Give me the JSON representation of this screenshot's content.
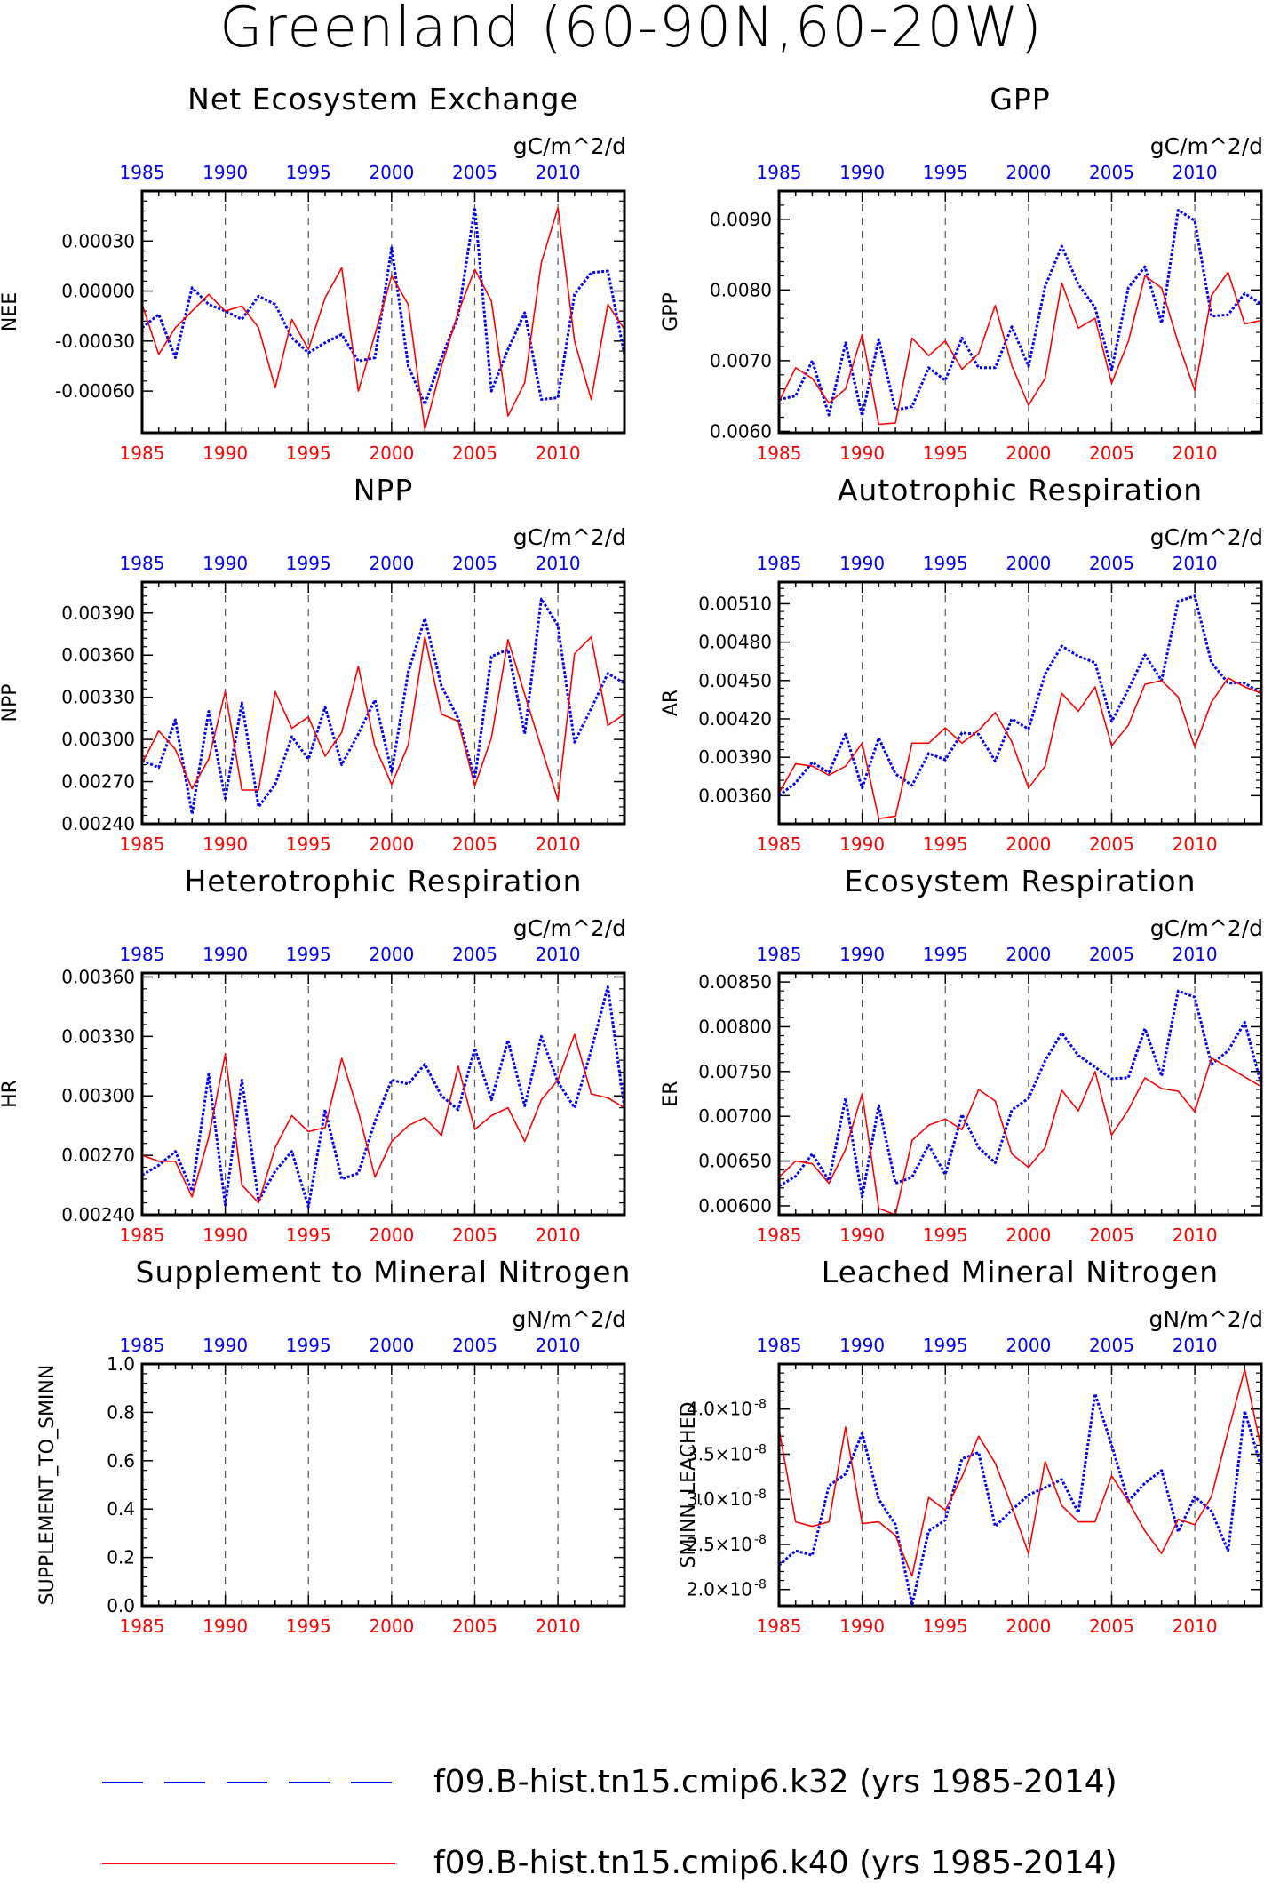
{
  "title": "Greenland (60-90N,60-20W)",
  "colors": {
    "k32": "#0000ff",
    "k40": "#ff0000",
    "grid": "#555555",
    "frame": "#000000"
  },
  "legend": [
    {
      "label": "f09.B-hist.tn15.cmip6.k32 (yrs 1985-2014)",
      "color": "#0000ff",
      "style": "dashed"
    },
    {
      "label": "f09.B-hist.tn15.cmip6.k40 (yrs 1985-2014)",
      "color": "#ff0000",
      "style": "solid"
    }
  ],
  "chart_data": [
    {
      "type": "line",
      "title": "Net Ecosystem Exchange",
      "ylabel": "NEE",
      "units": "gC/m^2/d",
      "x_range": [
        1985,
        2014
      ],
      "ylim": [
        -0.00085,
        0.0006
      ],
      "yticks": [
        -0.0006,
        -0.0003,
        0.0,
        0.0003
      ],
      "ytick_labels": [
        "-0.00060",
        "-0.00030",
        "0.00000",
        "0.00030"
      ],
      "top_ticks": [
        "1985",
        "1990",
        "1995",
        "2000",
        "2005",
        "2010"
      ],
      "bottom_ticks": [
        "1985",
        "1990",
        "1995",
        "2000",
        "2005",
        "2010"
      ],
      "series": [
        {
          "name": "f09.B-hist.tn15.cmip6.k32",
          "color": "#0000ff",
          "values": [
            -0.00022,
            -0.00014,
            -0.0004,
            2e-05,
            -8e-05,
            -0.00012,
            -0.00017,
            -3e-05,
            -8e-05,
            -0.00028,
            -0.00037,
            -0.00031,
            -0.00026,
            -0.00042,
            -0.0004,
            0.00026,
            -0.00045,
            -0.00068,
            -0.0004,
            -0.00015,
            0.0005,
            -0.0006,
            -0.00035,
            -0.00013,
            -0.00065,
            -0.00064,
            -2e-05,
            0.00011,
            0.00012,
            -0.00038
          ]
        },
        {
          "name": "f09.B-hist.tn15.cmip6.k40",
          "color": "#ff0000",
          "values": [
            -8e-05,
            -0.00038,
            -0.00022,
            -0.00012,
            -2e-05,
            -0.00012,
            -9e-05,
            -0.00022,
            -0.00058,
            -0.00017,
            -0.00035,
            -4e-05,
            0.00014,
            -0.0006,
            -0.00026,
            9e-05,
            -8e-05,
            -0.00083,
            -0.00045,
            -0.00013,
            0.00013,
            -6e-05,
            -0.00075,
            -0.00055,
            0.00017,
            0.0005,
            -0.0003,
            -0.00065,
            -8e-05,
            -0.00023
          ]
        }
      ]
    },
    {
      "type": "line",
      "title": "GPP",
      "ylabel": "GPP",
      "units": "gC/m^2/d",
      "x_range": [
        1985,
        2014
      ],
      "ylim": [
        0.00598,
        0.0094
      ],
      "yticks": [
        0.006,
        0.007,
        0.008,
        0.009
      ],
      "ytick_labels": [
        "0.0060",
        "0.0070",
        "0.0080",
        "0.0090"
      ],
      "top_ticks": [
        "1985",
        "1990",
        "1995",
        "2000",
        "2005",
        "2010"
      ],
      "bottom_ticks": [
        "1985",
        "1990",
        "1995",
        "2000",
        "2005",
        "2010"
      ],
      "series": [
        {
          "name": "f09.B-hist.tn15.cmip6.k32",
          "color": "#0000ff",
          "values": [
            0.00645,
            0.0065,
            0.007,
            0.00623,
            0.00725,
            0.00622,
            0.0073,
            0.0063,
            0.00635,
            0.0069,
            0.00672,
            0.00732,
            0.0069,
            0.0069,
            0.00748,
            0.00692,
            0.00805,
            0.00862,
            0.00808,
            0.00775,
            0.00687,
            0.00803,
            0.00833,
            0.00753,
            0.00913,
            0.00898,
            0.00763,
            0.00765,
            0.00795,
            0.0078
          ]
        },
        {
          "name": "f09.B-hist.tn15.cmip6.k40",
          "color": "#ff0000",
          "values": [
            0.00642,
            0.0069,
            0.00675,
            0.0064,
            0.0066,
            0.00737,
            0.0061,
            0.00612,
            0.00732,
            0.00707,
            0.00728,
            0.00688,
            0.0071,
            0.00778,
            0.00693,
            0.00637,
            0.00675,
            0.0081,
            0.00746,
            0.0076,
            0.00668,
            0.00727,
            0.0082,
            0.00803,
            0.00725,
            0.00658,
            0.00792,
            0.00825,
            0.00752,
            0.00757
          ]
        }
      ]
    },
    {
      "type": "line",
      "title": "NPP",
      "ylabel": "NPP",
      "units": "gC/m^2/d",
      "x_range": [
        1985,
        2014
      ],
      "ylim": [
        0.0024,
        0.00412
      ],
      "yticks": [
        0.0024,
        0.0027,
        0.003,
        0.0033,
        0.0036,
        0.0039
      ],
      "ytick_labels": [
        "0.00240",
        "0.00270",
        "0.00300",
        "0.00330",
        "0.00360",
        "0.00390"
      ],
      "top_ticks": [
        "1985",
        "1990",
        "1995",
        "2000",
        "2005",
        "2010"
      ],
      "bottom_ticks": [
        "1985",
        "1990",
        "1995",
        "2000",
        "2005",
        "2010"
      ],
      "series": [
        {
          "name": "f09.B-hist.tn15.cmip6.k32",
          "color": "#0000ff",
          "values": [
            0.00285,
            0.0028,
            0.00314,
            0.00247,
            0.0032,
            0.00258,
            0.00326,
            0.00252,
            0.00268,
            0.00302,
            0.00286,
            0.00323,
            0.00282,
            0.00304,
            0.00328,
            0.00277,
            0.00348,
            0.00386,
            0.00338,
            0.00315,
            0.00272,
            0.00359,
            0.00364,
            0.00304,
            0.004,
            0.00381,
            0.00298,
            0.00322,
            0.00347,
            0.0034
          ]
        },
        {
          "name": "f09.B-hist.tn15.cmip6.k40",
          "color": "#ff0000",
          "values": [
            0.00283,
            0.00306,
            0.00293,
            0.00265,
            0.00286,
            0.00334,
            0.00264,
            0.00264,
            0.00334,
            0.00308,
            0.00316,
            0.00288,
            0.00305,
            0.00352,
            0.00295,
            0.00268,
            0.00296,
            0.00373,
            0.00318,
            0.00313,
            0.00267,
            0.00301,
            0.00371,
            0.00332,
            0.00294,
            0.00257,
            0.00361,
            0.00373,
            0.0031,
            0.00318
          ]
        }
      ]
    },
    {
      "type": "line",
      "title": "Autotrophic Respiration",
      "ylabel": "AR",
      "units": "gC/m^2/d",
      "x_range": [
        1985,
        2014
      ],
      "ylim": [
        0.00338,
        0.00527
      ],
      "yticks": [
        0.0036,
        0.0039,
        0.0042,
        0.0045,
        0.0048,
        0.0051
      ],
      "ytick_labels": [
        "0.00360",
        "0.00390",
        "0.00420",
        "0.00450",
        "0.00480",
        "0.00510"
      ],
      "top_ticks": [
        "1985",
        "1990",
        "1995",
        "2000",
        "2005",
        "2010"
      ],
      "bottom_ticks": [
        "1985",
        "1990",
        "1995",
        "2000",
        "2005",
        "2010"
      ],
      "series": [
        {
          "name": "f09.B-hist.tn15.cmip6.k32",
          "color": "#0000ff",
          "values": [
            0.0036,
            0.0037,
            0.00386,
            0.00378,
            0.00408,
            0.00366,
            0.00405,
            0.00377,
            0.00368,
            0.00393,
            0.00388,
            0.00409,
            0.00408,
            0.00387,
            0.0042,
            0.00412,
            0.00455,
            0.00477,
            0.00469,
            0.00464,
            0.00418,
            0.00443,
            0.0047,
            0.0045,
            0.00512,
            0.00516,
            0.00464,
            0.00448,
            0.00448,
            0.0044
          ]
        },
        {
          "name": "f09.B-hist.tn15.cmip6.k40",
          "color": "#ff0000",
          "values": [
            0.00362,
            0.00385,
            0.00383,
            0.00376,
            0.00383,
            0.00401,
            0.00342,
            0.00344,
            0.00401,
            0.00401,
            0.00413,
            0.00401,
            0.00411,
            0.00425,
            0.00402,
            0.00366,
            0.00383,
            0.0044,
            0.00426,
            0.00445,
            0.00399,
            0.00415,
            0.00447,
            0.0045,
            0.00437,
            0.00398,
            0.00433,
            0.00452,
            0.00445,
            0.0044
          ]
        }
      ]
    },
    {
      "type": "line",
      "title": "Heterotrophic Respiration",
      "ylabel": "HR",
      "units": "gC/m^2/d",
      "x_range": [
        1985,
        2014
      ],
      "ylim": [
        0.0024,
        0.00362
      ],
      "yticks": [
        0.0024,
        0.0027,
        0.003,
        0.0033,
        0.0036
      ],
      "ytick_labels": [
        "0.00240",
        "0.00270",
        "0.00300",
        "0.00330",
        "0.00360"
      ],
      "top_ticks": [
        "1985",
        "1990",
        "1995",
        "2000",
        "2005",
        "2010"
      ],
      "bottom_ticks": [
        "1985",
        "1990",
        "1995",
        "2000",
        "2005",
        "2010"
      ],
      "series": [
        {
          "name": "f09.B-hist.tn15.cmip6.k32",
          "color": "#0000ff",
          "values": [
            0.0026,
            0.00265,
            0.00272,
            0.00252,
            0.00311,
            0.00245,
            0.00308,
            0.00247,
            0.00262,
            0.00272,
            0.00244,
            0.00293,
            0.00258,
            0.00261,
            0.00287,
            0.00308,
            0.00306,
            0.00316,
            0.003,
            0.00293,
            0.00324,
            0.00298,
            0.00328,
            0.00295,
            0.0033,
            0.00307,
            0.00294,
            0.00323,
            0.00355,
            0.00294
          ]
        },
        {
          "name": "f09.B-hist.tn15.cmip6.k40",
          "color": "#ff0000",
          "values": [
            0.0027,
            0.00267,
            0.00267,
            0.00249,
            0.00279,
            0.00321,
            0.00255,
            0.00246,
            0.00274,
            0.0029,
            0.00282,
            0.00284,
            0.00319,
            0.00292,
            0.00259,
            0.00277,
            0.00285,
            0.00289,
            0.0028,
            0.00315,
            0.00283,
            0.0029,
            0.00294,
            0.00277,
            0.00298,
            0.00308,
            0.00331,
            0.00301,
            0.00299,
            0.00294
          ]
        }
      ]
    },
    {
      "type": "line",
      "title": "Ecosystem Respiration",
      "ylabel": "ER",
      "units": "gC/m^2/d",
      "x_range": [
        1985,
        2014
      ],
      "ylim": [
        0.0059,
        0.0086
      ],
      "yticks": [
        0.006,
        0.0065,
        0.007,
        0.0075,
        0.008,
        0.0085
      ],
      "ytick_labels": [
        "0.00600",
        "0.00650",
        "0.00700",
        "0.00750",
        "0.00800",
        "0.00850"
      ],
      "top_ticks": [
        "1985",
        "1990",
        "1995",
        "2000",
        "2005",
        "2010"
      ],
      "bottom_ticks": [
        "1985",
        "1990",
        "1995",
        "2000",
        "2005",
        "2010"
      ],
      "series": [
        {
          "name": "f09.B-hist.tn15.cmip6.k32",
          "color": "#0000ff",
          "values": [
            0.00622,
            0.00633,
            0.00658,
            0.00628,
            0.0072,
            0.0061,
            0.00712,
            0.00625,
            0.00632,
            0.00668,
            0.00635,
            0.00702,
            0.00665,
            0.00648,
            0.00707,
            0.0072,
            0.00762,
            0.00793,
            0.00768,
            0.00755,
            0.00742,
            0.00743,
            0.00798,
            0.00745,
            0.0084,
            0.00833,
            0.00758,
            0.00773,
            0.00805,
            0.00735
          ]
        },
        {
          "name": "f09.B-hist.tn15.cmip6.k40",
          "color": "#ff0000",
          "values": [
            0.00632,
            0.0065,
            0.00647,
            0.00625,
            0.00663,
            0.00725,
            0.00597,
            0.0059,
            0.00673,
            0.0069,
            0.00697,
            0.00685,
            0.0073,
            0.00717,
            0.00658,
            0.00643,
            0.00665,
            0.00729,
            0.00706,
            0.0075,
            0.00679,
            0.00707,
            0.00743,
            0.00731,
            0.00728,
            0.00705,
            0.00765,
            0.00755,
            0.00744,
            0.00733
          ]
        }
      ]
    },
    {
      "type": "line",
      "title": "Supplement to Mineral Nitrogen",
      "ylabel": "SUPPLEMENT_TO_SMINN",
      "units": "gN/m^2/d",
      "x_range": [
        1985,
        2014
      ],
      "ylim": [
        0.0,
        1.0
      ],
      "yticks": [
        0.0,
        0.2,
        0.4,
        0.6,
        0.8,
        1.0
      ],
      "ytick_labels": [
        "0.0",
        "0.2",
        "0.4",
        "0.6",
        "0.8",
        "1.0"
      ],
      "top_ticks": [
        "1985",
        "1990",
        "1995",
        "2000",
        "2005",
        "2010"
      ],
      "bottom_ticks": [
        "1985",
        "1990",
        "1995",
        "2000",
        "2005",
        "2010"
      ],
      "series": []
    },
    {
      "type": "line",
      "title": "Leached Mineral Nitrogen",
      "ylabel": "SMINN_LEACHED",
      "units": "gN/m^2/d",
      "x_range": [
        1985,
        2014
      ],
      "ylim": [
        1.82e-08,
        4.5e-08
      ],
      "yticks": [
        2e-08,
        2.5e-08,
        3e-08,
        3.5e-08,
        4e-08
      ],
      "ytick_labels": [
        "2.0×10",
        "2.5×10",
        "3.0×10",
        "3.5×10",
        "4.0×10"
      ],
      "ytick_exponent": "-8",
      "top_ticks": [
        "1985",
        "1990",
        "1995",
        "2000",
        "2005",
        "2010"
      ],
      "bottom_ticks": [
        "1985",
        "1990",
        "1995",
        "2000",
        "2005",
        "2010"
      ],
      "series": [
        {
          "name": "f09.B-hist.tn15.cmip6.k32",
          "color": "#0000ff",
          "values": [
            2.27e-08,
            2.43e-08,
            2.38e-08,
            3.15e-08,
            3.28e-08,
            3.73e-08,
            3e-08,
            2.72e-08,
            1.83e-08,
            2.65e-08,
            2.77e-08,
            3.45e-08,
            3.52e-08,
            2.7e-08,
            2.88e-08,
            3.05e-08,
            3.13e-08,
            3.22e-08,
            2.85e-08,
            4.17e-08,
            3.6e-08,
            2.98e-08,
            3.18e-08,
            3.32e-08,
            2.64e-08,
            3.03e-08,
            2.87e-08,
            2.43e-08,
            3.98e-08,
            3.35e-08
          ]
        },
        {
          "name": "f09.B-hist.tn15.cmip6.k40",
          "color": "#ff0000",
          "values": [
            3.78e-08,
            2.75e-08,
            2.7e-08,
            2.75e-08,
            3.8e-08,
            2.73e-08,
            2.75e-08,
            2.6e-08,
            2.15e-08,
            3.02e-08,
            2.88e-08,
            3.25e-08,
            3.7e-08,
            3.4e-08,
            2.92e-08,
            2.4e-08,
            3.42e-08,
            2.93e-08,
            2.75e-08,
            2.75e-08,
            3.26e-08,
            2.98e-08,
            2.65e-08,
            2.4e-08,
            2.78e-08,
            2.72e-08,
            3.03e-08,
            3.75e-08,
            4.44e-08,
            3.55e-08
          ]
        }
      ]
    }
  ]
}
